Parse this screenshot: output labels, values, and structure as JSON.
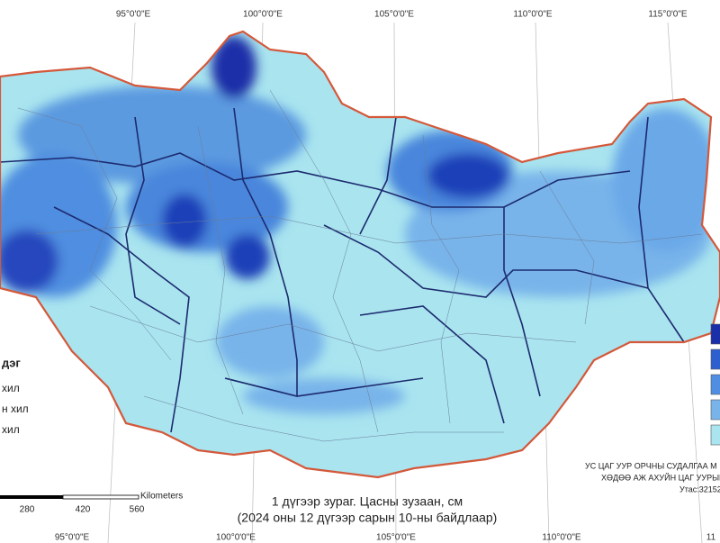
{
  "longitude_labels_top": [
    "95°0'0\"E",
    "100°0'0\"E",
    "105°0'0\"E",
    "110°0'0\"E",
    "115°0'0\"E"
  ],
  "longitude_labels_bottom": [
    "95°0'0\"E",
    "100°0'0\"E",
    "105°0'0\"E",
    "110°0'0\"E",
    "11"
  ],
  "legend": {
    "title": "дэг",
    "items": [
      "хил",
      "н хил",
      "хил"
    ]
  },
  "scale_bar": {
    "unit": "Kilometers",
    "labels": [
      "280",
      "420",
      "560"
    ]
  },
  "caption": {
    "line1": "1 дүгээр зураг. Цасны зузаан, см",
    "line2": "(2024 оны 12 дүгээр сарын 10-ны байдлаар)"
  },
  "credits": [
    "УС ЦАГ УУР ОРЧНЫ СУДАЛГАА М",
    "ХӨДӨӨ АЖ АХУЙН ЦАГ УУРЫН",
    "Утас:32152"
  ]
}
